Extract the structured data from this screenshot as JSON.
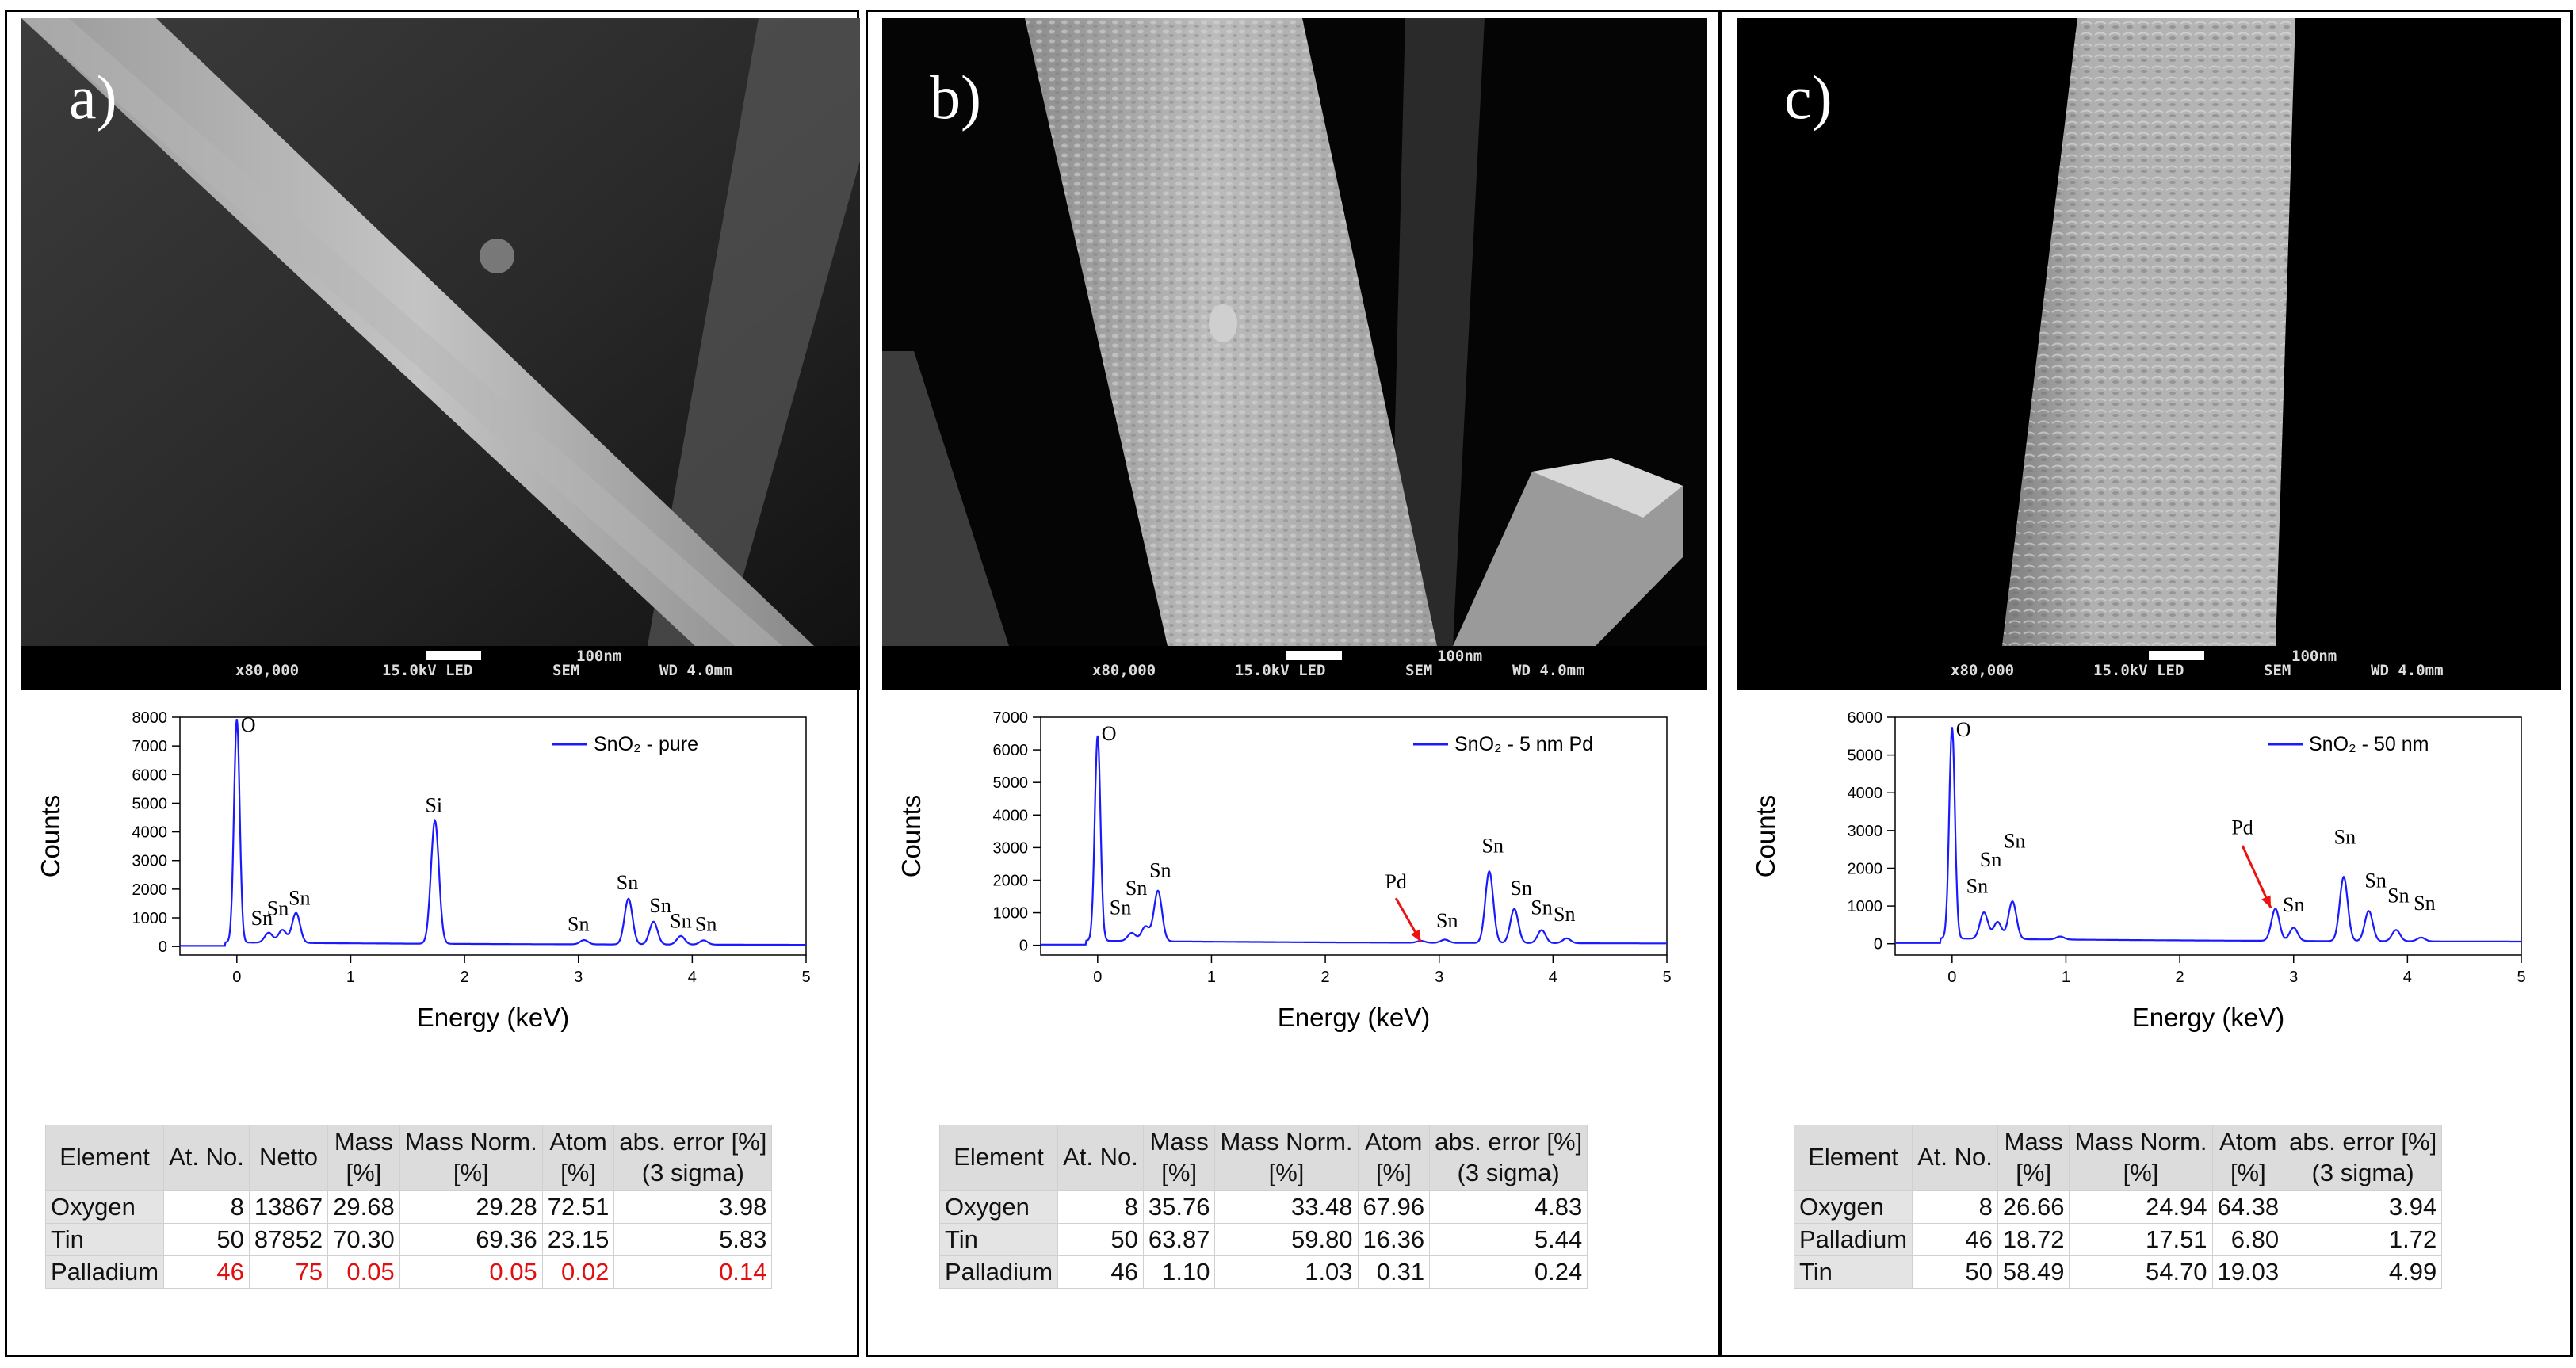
{
  "panels": [
    {
      "label": "a)",
      "sem_bar": {
        "mag": "x80,000",
        "voltage": "15.0kV LED",
        "mode": "SEM",
        "wd": "WD 4.0mm",
        "scale": "100nm"
      },
      "chart_data": {
        "type": "line",
        "xlabel": "Energy (keV)",
        "ylabel": "Counts",
        "xlim": [
          -0.5,
          5
        ],
        "ylim": [
          -300,
          8000
        ],
        "xticks": [
          "0",
          "1",
          "2",
          "3",
          "4",
          "5"
        ],
        "yticks": [
          "0",
          "1000",
          "2000",
          "3000",
          "4000",
          "5000",
          "6000",
          "7000",
          "8000"
        ],
        "legend": {
          "text": "SnO₂ - pure",
          "placement": "top-right"
        },
        "series": [
          {
            "name": "SnO₂ - pure",
            "color": "#1a1aff",
            "peaks": [
              [
                0.0,
                7800
              ],
              [
                0.28,
                350
              ],
              [
                0.4,
                450
              ],
              [
                0.52,
                1050
              ],
              [
                1.74,
                4300
              ],
              [
                3.05,
                150
              ],
              [
                3.44,
                1600
              ],
              [
                3.66,
                800
              ],
              [
                3.9,
                300
              ],
              [
                4.1,
                150
              ]
            ]
          }
        ],
        "annotations": [
          {
            "text": "O",
            "x": 0.1,
            "y": 7500
          },
          {
            "text": "Sn",
            "x": 0.22,
            "y": 750
          },
          {
            "text": "Sn",
            "x": 0.36,
            "y": 1100
          },
          {
            "text": "Sn",
            "x": 0.55,
            "y": 1450
          },
          {
            "text": "Si",
            "x": 1.73,
            "y": 4700
          },
          {
            "text": "Sn",
            "x": 3.0,
            "y": 550
          },
          {
            "text": "Sn",
            "x": 3.43,
            "y": 2000
          },
          {
            "text": "Sn",
            "x": 3.72,
            "y": 1200
          },
          {
            "text": "Sn",
            "x": 3.9,
            "y": 650
          },
          {
            "text": "Sn",
            "x": 4.12,
            "y": 550
          }
        ]
      },
      "table": {
        "headers": [
          "Element",
          "At. No.",
          "Netto",
          "Mass\n[%]",
          "Mass Norm.\n[%]",
          "Atom\n[%]",
          "abs. error [%]\n(3 sigma)"
        ],
        "rows": [
          [
            "Oxygen",
            "8",
            "13867",
            "29.68",
            "29.28",
            "72.51",
            "3.98"
          ],
          [
            "Tin",
            "50",
            "87852",
            "70.30",
            "69.36",
            "23.15",
            "5.83"
          ],
          [
            "Palladium",
            "46",
            "75",
            "0.05",
            "0.05",
            "0.02",
            "0.14"
          ]
        ],
        "highlight_row": 2,
        "highlight_color": "#e01010"
      }
    },
    {
      "label": "b)",
      "sem_bar": {
        "mag": "x80,000",
        "voltage": "15.0kV LED",
        "mode": "SEM",
        "wd": "WD 4.0mm",
        "scale": "100nm"
      },
      "chart_data": {
        "type": "line",
        "xlabel": "Energy (keV)",
        "ylabel": "Counts",
        "xlim": [
          -0.5,
          5
        ],
        "ylim": [
          -300,
          7000
        ],
        "xticks": [
          "0",
          "1",
          "2",
          "3",
          "4",
          "5"
        ],
        "yticks": [
          "0",
          "1000",
          "2000",
          "3000",
          "4000",
          "5000",
          "6000",
          "7000"
        ],
        "legend": {
          "text": "SnO₂ - 5 nm Pd",
          "placement": "top-right"
        },
        "series": [
          {
            "name": "SnO₂ - 5 nm Pd",
            "color": "#1a1aff",
            "peaks": [
              [
                0.0,
                6300
              ],
              [
                0.3,
                250
              ],
              [
                0.42,
                450
              ],
              [
                0.53,
                1550
              ],
              [
                2.84,
                60
              ],
              [
                3.05,
                100
              ],
              [
                3.44,
                2200
              ],
              [
                3.66,
                1050
              ],
              [
                3.9,
                400
              ],
              [
                4.12,
                150
              ]
            ]
          }
        ],
        "annotations": [
          {
            "text": "O",
            "x": 0.1,
            "y": 6300
          },
          {
            "text": "Sn",
            "x": 0.2,
            "y": 950
          },
          {
            "text": "Sn",
            "x": 0.34,
            "y": 1550
          },
          {
            "text": "Sn",
            "x": 0.55,
            "y": 2100
          },
          {
            "text": "Pd",
            "x": 2.62,
            "y": 1750
          },
          {
            "text": "Sn",
            "x": 3.07,
            "y": 550
          },
          {
            "text": "Sn",
            "x": 3.47,
            "y": 2850
          },
          {
            "text": "Sn",
            "x": 3.72,
            "y": 1550
          },
          {
            "text": "Sn",
            "x": 3.9,
            "y": 950
          },
          {
            "text": "Sn",
            "x": 4.1,
            "y": 750
          }
        ],
        "arrow": {
          "from": [
            2.62,
            1450
          ],
          "to": [
            2.84,
            100
          ],
          "color": "#ee1111"
        }
      },
      "table": {
        "headers": [
          "Element",
          "At. No.",
          "Mass\n[%]",
          "Mass Norm.\n[%]",
          "Atom\n[%]",
          "abs. error [%]\n(3 sigma)"
        ],
        "rows": [
          [
            "Oxygen",
            "8",
            "35.76",
            "33.48",
            "67.96",
            "4.83"
          ],
          [
            "Tin",
            "50",
            "63.87",
            "59.80",
            "16.36",
            "5.44"
          ],
          [
            "Palladium",
            "46",
            "1.10",
            "1.03",
            "0.31",
            "0.24"
          ]
        ]
      }
    },
    {
      "label": "c)",
      "sem_bar": {
        "mag": "x80,000",
        "voltage": "15.0kV LED",
        "mode": "SEM",
        "wd": "WD 4.0mm",
        "scale": "100nm"
      },
      "chart_data": {
        "type": "line",
        "xlabel": "Energy (keV)",
        "ylabel": "Counts",
        "xlim": [
          -0.5,
          5
        ],
        "ylim": [
          -300,
          6000
        ],
        "xticks": [
          "0",
          "1",
          "2",
          "3",
          "4",
          "5"
        ],
        "yticks": [
          "0",
          "1000",
          "2000",
          "3000",
          "4000",
          "5000",
          "6000"
        ],
        "legend": {
          "text": "SnO₂ - 50 nm",
          "placement": "top-right"
        },
        "series": [
          {
            "name": "SnO₂ - 50 nm",
            "color": "#1a1aff",
            "peaks": [
              [
                0.0,
                5600
              ],
              [
                0.28,
                700
              ],
              [
                0.4,
                450
              ],
              [
                0.53,
                1000
              ],
              [
                0.95,
                80
              ],
              [
                2.84,
                850
              ],
              [
                3.0,
                350
              ],
              [
                3.44,
                1700
              ],
              [
                3.66,
                800
              ],
              [
                3.9,
                300
              ],
              [
                4.12,
                100
              ]
            ]
          }
        ],
        "annotations": [
          {
            "text": "O",
            "x": 0.1,
            "y": 5500
          },
          {
            "text": "Sn",
            "x": 0.22,
            "y": 1350
          },
          {
            "text": "Sn",
            "x": 0.34,
            "y": 2050
          },
          {
            "text": "Sn",
            "x": 0.55,
            "y": 2550
          },
          {
            "text": "Pd",
            "x": 2.55,
            "y": 2900
          },
          {
            "text": "Sn",
            "x": 3.0,
            "y": 850
          },
          {
            "text": "Sn",
            "x": 3.45,
            "y": 2650
          },
          {
            "text": "Sn",
            "x": 3.72,
            "y": 1500
          },
          {
            "text": "Sn",
            "x": 3.92,
            "y": 1100
          },
          {
            "text": "Sn",
            "x": 4.15,
            "y": 900
          }
        ],
        "arrow": {
          "from": [
            2.55,
            2600
          ],
          "to": [
            2.8,
            950
          ],
          "color": "#ee1111"
        }
      },
      "table": {
        "headers": [
          "Element",
          "At. No.",
          "Mass\n[%]",
          "Mass Norm.\n[%]",
          "Atom\n[%]",
          "abs. error [%]\n(3 sigma)"
        ],
        "rows": [
          [
            "Oxygen",
            "8",
            "26.66",
            "24.94",
            "64.38",
            "3.94"
          ],
          [
            "Palladium",
            "46",
            "18.72",
            "17.51",
            "6.80",
            "1.72"
          ],
          [
            "Tin",
            "50",
            "58.49",
            "54.70",
            "19.03",
            "4.99"
          ]
        ]
      }
    }
  ]
}
